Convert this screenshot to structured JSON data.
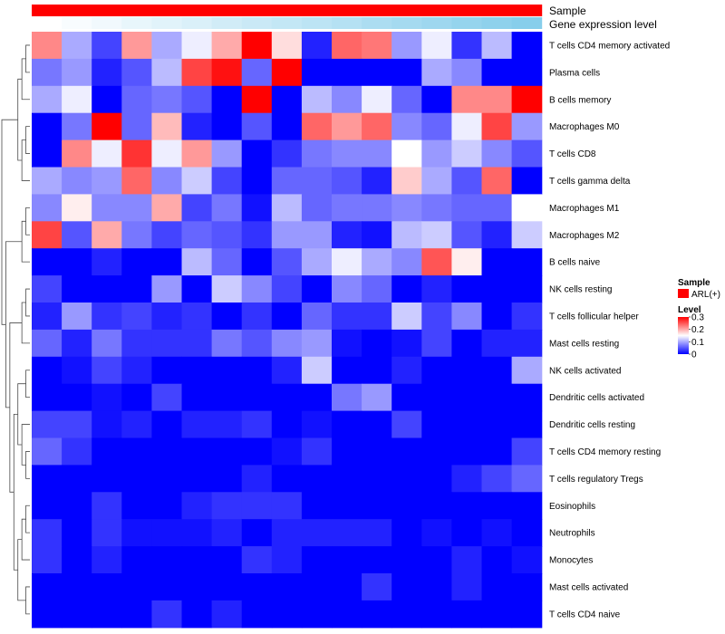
{
  "chart_data": {
    "type": "heatmap",
    "annotation_tracks": [
      {
        "name": "Sample"
      },
      {
        "name": "Gene expression level"
      }
    ],
    "legend": {
      "sample_title": "Sample",
      "sample_entries": [
        {
          "label": "ARL(+)",
          "color": "#ff0000"
        }
      ],
      "level_title": "Level",
      "level_ticks": [
        "0",
        "0.1",
        "0.2",
        "0.3"
      ],
      "level_values": [
        0,
        0.1,
        0.2,
        0.3
      ],
      "level_range": [
        0,
        0.3
      ]
    },
    "color_scale": {
      "low": "#0000ff",
      "mid": "#ffffff",
      "high": "#ff0000",
      "midpoint": 0.15
    },
    "gene_expression_range": [
      0,
      1
    ],
    "gene_expression_colors": {
      "low": "#ffffff",
      "high": "#87ceeb"
    },
    "columns": 17,
    "gene_expression_levels": [
      0.0,
      0.06,
      0.12,
      0.19,
      0.25,
      0.31,
      0.38,
      0.44,
      0.5,
      0.56,
      0.62,
      0.69,
      0.75,
      0.81,
      0.88,
      0.94,
      1.0
    ],
    "dendrogram_side": "left",
    "rows": [
      {
        "label": "T cells CD4 memory activated",
        "values": [
          0.22,
          0.1,
          0.04,
          0.21,
          0.1,
          0.14,
          0.2,
          0.3,
          0.17,
          0.02,
          0.24,
          0.23,
          0.09,
          0.14,
          0.03,
          0.11,
          0.0
        ]
      },
      {
        "label": "Plasma cells",
        "values": [
          0.07,
          0.09,
          0.02,
          0.05,
          0.11,
          0.26,
          0.29,
          0.06,
          0.3,
          0.0,
          0.0,
          0.0,
          0.0,
          0.1,
          0.08,
          0.0,
          0.0
        ]
      },
      {
        "label": "B cells memory",
        "values": [
          0.1,
          0.14,
          0.0,
          0.06,
          0.07,
          0.05,
          0.0,
          0.3,
          0.0,
          0.11,
          0.08,
          0.14,
          0.06,
          0.0,
          0.22,
          0.22,
          0.3
        ]
      },
      {
        "label": "Macrophages M0",
        "values": [
          0.0,
          0.07,
          0.3,
          0.06,
          0.19,
          0.02,
          0.0,
          0.05,
          0.0,
          0.24,
          0.21,
          0.24,
          0.08,
          0.06,
          0.14,
          0.26,
          0.09
        ]
      },
      {
        "label": "T cells CD8",
        "values": [
          0.0,
          0.22,
          0.14,
          0.27,
          0.14,
          0.21,
          0.09,
          0.0,
          0.03,
          0.07,
          0.08,
          0.08,
          0.15,
          0.09,
          0.12,
          0.08,
          0.05
        ]
      },
      {
        "label": "T cells gamma delta",
        "values": [
          0.1,
          0.08,
          0.09,
          0.24,
          0.08,
          0.12,
          0.04,
          0.0,
          0.06,
          0.06,
          0.05,
          0.02,
          0.18,
          0.1,
          0.05,
          0.24,
          0.0
        ]
      },
      {
        "label": "Macrophages M1",
        "values": [
          0.08,
          0.16,
          0.08,
          0.08,
          0.2,
          0.04,
          0.07,
          0.01,
          0.11,
          0.06,
          0.07,
          0.07,
          0.08,
          0.07,
          0.06,
          0.06,
          0.15
        ]
      },
      {
        "label": "Macrophages M2",
        "values": [
          0.26,
          0.05,
          0.2,
          0.07,
          0.04,
          0.06,
          0.05,
          0.03,
          0.09,
          0.09,
          0.02,
          0.01,
          0.11,
          0.12,
          0.05,
          0.02,
          0.12
        ]
      },
      {
        "label": "B cells naive",
        "values": [
          0.0,
          0.0,
          0.02,
          0.0,
          0.0,
          0.11,
          0.06,
          0.0,
          0.05,
          0.1,
          0.14,
          0.1,
          0.08,
          0.25,
          0.16,
          0.0,
          0.0
        ]
      },
      {
        "label": "NK cells resting",
        "values": [
          0.04,
          0.0,
          0.0,
          0.0,
          0.09,
          0.0,
          0.12,
          0.08,
          0.04,
          0.0,
          0.08,
          0.06,
          0.0,
          0.02,
          0.0,
          0.0,
          0.0
        ]
      },
      {
        "label": "T cells follicular helper",
        "values": [
          0.02,
          0.09,
          0.03,
          0.04,
          0.02,
          0.03,
          0.0,
          0.03,
          0.0,
          0.06,
          0.03,
          0.03,
          0.12,
          0.04,
          0.08,
          0.0,
          0.03
        ]
      },
      {
        "label": "Mast cells resting",
        "values": [
          0.06,
          0.02,
          0.07,
          0.03,
          0.03,
          0.03,
          0.07,
          0.05,
          0.08,
          0.09,
          0.01,
          0.0,
          0.01,
          0.04,
          0.0,
          0.02,
          0.02
        ]
      },
      {
        "label": "NK cells activated",
        "values": [
          0.0,
          0.01,
          0.04,
          0.02,
          0.0,
          0.0,
          0.0,
          0.0,
          0.02,
          0.12,
          0.0,
          0.0,
          0.02,
          0.0,
          0.0,
          0.0,
          0.1
        ]
      },
      {
        "label": "Dendritic cells activated",
        "values": [
          0.0,
          0.0,
          0.01,
          0.0,
          0.04,
          0.0,
          0.0,
          0.0,
          0.0,
          0.0,
          0.07,
          0.09,
          0.0,
          0.0,
          0.0,
          0.0,
          0.0
        ]
      },
      {
        "label": "Dendritic cells resting",
        "values": [
          0.04,
          0.04,
          0.01,
          0.02,
          0.0,
          0.02,
          0.02,
          0.03,
          0.0,
          0.01,
          0.0,
          0.0,
          0.04,
          0.0,
          0.0,
          0.0,
          0.0
        ]
      },
      {
        "label": "T cells CD4 memory resting",
        "values": [
          0.06,
          0.03,
          0.0,
          0.0,
          0.0,
          0.0,
          0.0,
          0.0,
          0.01,
          0.03,
          0.0,
          0.0,
          0.0,
          0.0,
          0.0,
          0.0,
          0.04
        ]
      },
      {
        "label": "T cells regulatory  Tregs",
        "values": [
          0.0,
          0.0,
          0.0,
          0.0,
          0.0,
          0.0,
          0.0,
          0.02,
          0.0,
          0.0,
          0.0,
          0.0,
          0.0,
          0.0,
          0.02,
          0.04,
          0.06
        ]
      },
      {
        "label": "Eosinophils",
        "values": [
          0.0,
          0.0,
          0.03,
          0.0,
          0.0,
          0.02,
          0.03,
          0.03,
          0.03,
          0.0,
          0.0,
          0.0,
          0.0,
          0.0,
          0.0,
          0.0,
          0.0
        ]
      },
      {
        "label": "Neutrophils",
        "values": [
          0.03,
          0.0,
          0.03,
          0.01,
          0.01,
          0.01,
          0.02,
          0.0,
          0.02,
          0.02,
          0.02,
          0.02,
          0.0,
          0.01,
          0.0,
          0.01,
          0.0
        ]
      },
      {
        "label": "Monocytes",
        "values": [
          0.03,
          0.0,
          0.02,
          0.0,
          0.0,
          0.0,
          0.0,
          0.03,
          0.02,
          0.0,
          0.0,
          0.0,
          0.0,
          0.0,
          0.02,
          0.0,
          0.01
        ]
      },
      {
        "label": "Mast cells activated",
        "values": [
          0.0,
          0.0,
          0.0,
          0.0,
          0.0,
          0.0,
          0.0,
          0.0,
          0.0,
          0.0,
          0.0,
          0.03,
          0.0,
          0.0,
          0.02,
          0.0,
          0.0
        ]
      },
      {
        "label": "T cells CD4 naive",
        "values": [
          0.0,
          0.0,
          0.0,
          0.0,
          0.03,
          0.0,
          0.02,
          0.0,
          0.0,
          0.0,
          0.0,
          0.0,
          0.0,
          0.0,
          0.0,
          0.0,
          0.0
        ]
      }
    ]
  }
}
